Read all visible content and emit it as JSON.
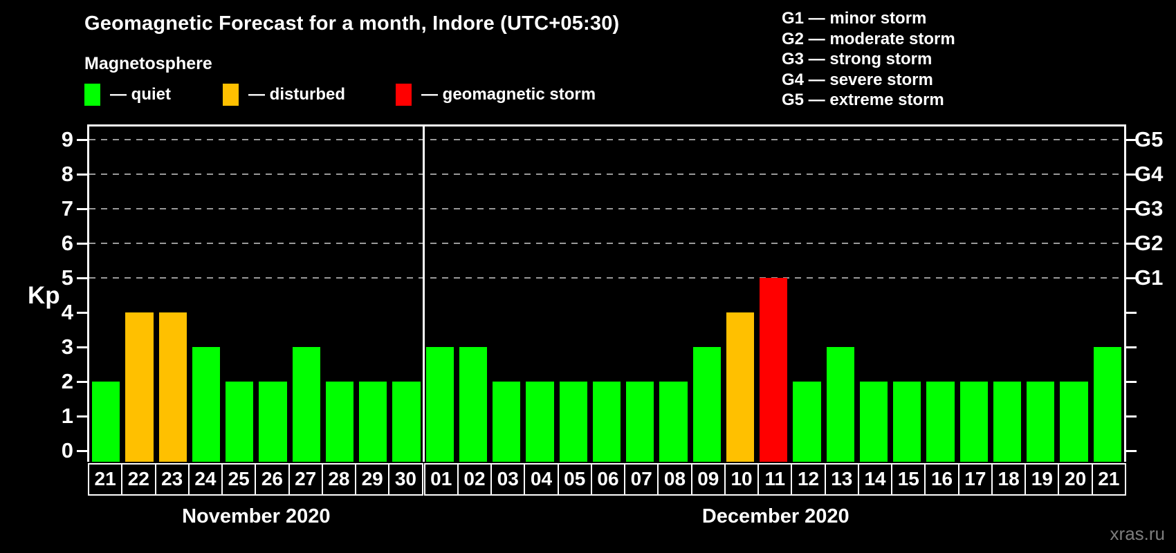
{
  "header": {
    "title": "Geomagnetic Forecast for a month, Indore (UTC+05:30)",
    "subtitle": "Magnetosphere"
  },
  "legend": {
    "items": [
      {
        "key": "quiet",
        "label": "— quiet"
      },
      {
        "key": "disturbed",
        "label": "— disturbed"
      },
      {
        "key": "storm",
        "label": "— geomagnetic storm"
      }
    ]
  },
  "g_legend": [
    "G1 — minor storm",
    "G2 — moderate storm",
    "G3 — strong storm",
    "G4 — severe storm",
    "G5 — extreme storm"
  ],
  "watermark": "xras.ru",
  "chart_data": {
    "type": "bar",
    "title": "Geomagnetic Forecast for a month, Indore (UTC+05:30)",
    "ylabel": "Kp",
    "ylim": [
      0,
      9
    ],
    "y_ticks": [
      0,
      1,
      2,
      3,
      4,
      5,
      6,
      7,
      8,
      9
    ],
    "gridlines_kp": [
      5,
      6,
      7,
      8,
      9
    ],
    "grid_style": "dashed horizontal, gray, only at Kp 5-9",
    "right_axis_labels": [
      {
        "kp": 5,
        "label": "G1"
      },
      {
        "kp": 6,
        "label": "G2"
      },
      {
        "kp": 7,
        "label": "G3"
      },
      {
        "kp": 8,
        "label": "G4"
      },
      {
        "kp": 9,
        "label": "G5"
      }
    ],
    "status_colors": {
      "quiet": "#00ff00",
      "disturbed": "#ffc000",
      "storm": "#ff0000"
    },
    "background_color": "#000000",
    "months": [
      {
        "label": "November 2020",
        "bars": [
          {
            "day": "21",
            "kp": 2,
            "status": "quiet"
          },
          {
            "day": "22",
            "kp": 4,
            "status": "disturbed"
          },
          {
            "day": "23",
            "kp": 4,
            "status": "disturbed"
          },
          {
            "day": "24",
            "kp": 3,
            "status": "quiet"
          },
          {
            "day": "25",
            "kp": 2,
            "status": "quiet"
          },
          {
            "day": "26",
            "kp": 2,
            "status": "quiet"
          },
          {
            "day": "27",
            "kp": 3,
            "status": "quiet"
          },
          {
            "day": "28",
            "kp": 2,
            "status": "quiet"
          },
          {
            "day": "29",
            "kp": 2,
            "status": "quiet"
          },
          {
            "day": "30",
            "kp": 2,
            "status": "quiet"
          }
        ]
      },
      {
        "label": "December 2020",
        "bars": [
          {
            "day": "01",
            "kp": 3,
            "status": "quiet"
          },
          {
            "day": "02",
            "kp": 3,
            "status": "quiet"
          },
          {
            "day": "03",
            "kp": 2,
            "status": "quiet"
          },
          {
            "day": "04",
            "kp": 2,
            "status": "quiet"
          },
          {
            "day": "05",
            "kp": 2,
            "status": "quiet"
          },
          {
            "day": "06",
            "kp": 2,
            "status": "quiet"
          },
          {
            "day": "07",
            "kp": 2,
            "status": "quiet"
          },
          {
            "day": "08",
            "kp": 2,
            "status": "quiet"
          },
          {
            "day": "09",
            "kp": 3,
            "status": "quiet"
          },
          {
            "day": "10",
            "kp": 4,
            "status": "disturbed"
          },
          {
            "day": "11",
            "kp": 5,
            "status": "storm"
          },
          {
            "day": "12",
            "kp": 2,
            "status": "quiet"
          },
          {
            "day": "13",
            "kp": 3,
            "status": "quiet"
          },
          {
            "day": "14",
            "kp": 2,
            "status": "quiet"
          },
          {
            "day": "15",
            "kp": 2,
            "status": "quiet"
          },
          {
            "day": "16",
            "kp": 2,
            "status": "quiet"
          },
          {
            "day": "17",
            "kp": 2,
            "status": "quiet"
          },
          {
            "day": "18",
            "kp": 2,
            "status": "quiet"
          },
          {
            "day": "19",
            "kp": 2,
            "status": "quiet"
          },
          {
            "day": "20",
            "kp": 2,
            "status": "quiet"
          },
          {
            "day": "21",
            "kp": 3,
            "status": "quiet"
          }
        ]
      }
    ]
  }
}
